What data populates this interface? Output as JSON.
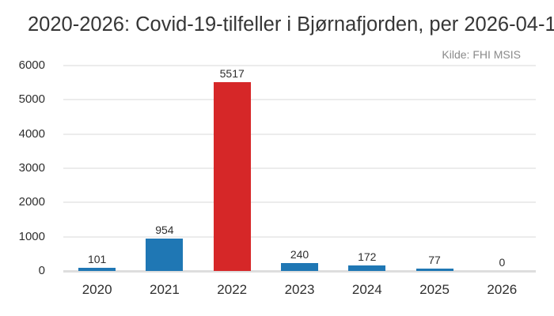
{
  "chart_data": {
    "type": "bar",
    "title": "2020-2026: Covid-19-tilfeller i Bjørnafjorden, per 2026-04-1",
    "source_note": "Kilde: FHI MSIS",
    "categories": [
      "2020",
      "2021",
      "2022",
      "2023",
      "2024",
      "2025",
      "2026"
    ],
    "values": [
      101,
      954,
      5517,
      240,
      172,
      77,
      0
    ],
    "data_labels": true,
    "bar_colors": [
      "#1f77b4",
      "#1f77b4",
      "#d62728",
      "#1f77b4",
      "#1f77b4",
      "#1f77b4",
      "#1f77b4"
    ],
    "highlighted_category": "2022",
    "xlabel": "",
    "ylabel": "",
    "ylim": [
      0,
      6000
    ],
    "yticks": [
      0,
      1000,
      2000,
      3000,
      4000,
      5000,
      6000
    ],
    "grid": "horizontal",
    "legend": "none"
  },
  "colors": {
    "bar_default": "#1f77b4",
    "bar_highlight": "#d62728",
    "gridline": "#ececec",
    "baseline": "#dedede",
    "text": "#2f2f2f",
    "title_text": "#363636",
    "muted_text": "#8a8a8a",
    "background": "#ffffff"
  }
}
